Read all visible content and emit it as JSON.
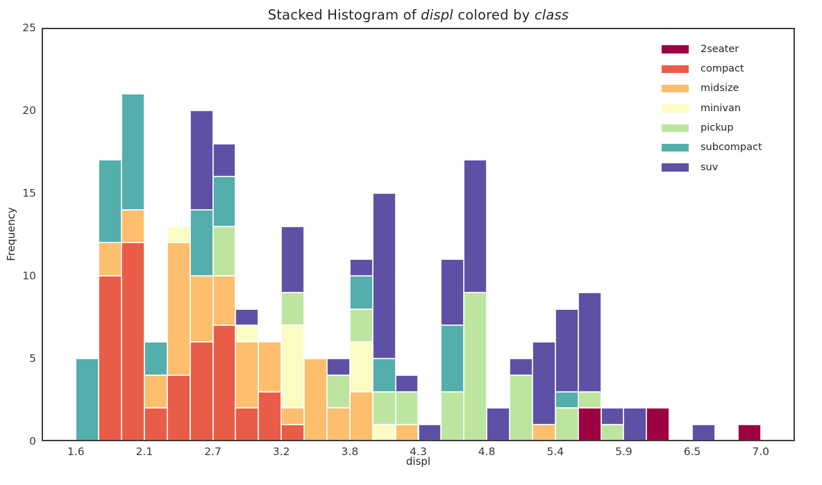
{
  "chart_data": {
    "type": "bar",
    "subtype": "stacked-histogram",
    "title_plain": "Stacked Histogram of displ colored by class",
    "title_parts": [
      {
        "text": "Stacked Histogram of ",
        "italic": false
      },
      {
        "text": "displ",
        "italic": true
      },
      {
        "text": " colored by ",
        "italic": false
      },
      {
        "text": "class",
        "italic": true
      }
    ],
    "xlabel": "displ",
    "ylabel": "Frequency",
    "xlim": [
      1.33,
      7.27
    ],
    "ylim": [
      0,
      25
    ],
    "grid": false,
    "legend_position": "upper-right-inside",
    "bin_width": 0.18,
    "y_ticks": [
      {
        "value": 0,
        "label": "0"
      },
      {
        "value": 5,
        "label": "5"
      },
      {
        "value": 10,
        "label": "10"
      },
      {
        "value": 15,
        "label": "15"
      },
      {
        "value": 20,
        "label": "20"
      },
      {
        "value": 25,
        "label": "25"
      }
    ],
    "x_ticks": [
      {
        "value": 1.6,
        "label": "1.6"
      },
      {
        "value": 2.14,
        "label": "2.1"
      },
      {
        "value": 2.68,
        "label": "2.7"
      },
      {
        "value": 3.22,
        "label": "3.2"
      },
      {
        "value": 3.76,
        "label": "3.8"
      },
      {
        "value": 4.3,
        "label": "4.3"
      },
      {
        "value": 4.84,
        "label": "4.8"
      },
      {
        "value": 5.38,
        "label": "5.4"
      },
      {
        "value": 5.92,
        "label": "5.9"
      },
      {
        "value": 6.46,
        "label": "6.5"
      },
      {
        "value": 7.0,
        "label": "7.0"
      }
    ],
    "classes": [
      {
        "name": "2seater",
        "color": "#9e0142"
      },
      {
        "name": "compact",
        "color": "#e95c47"
      },
      {
        "name": "midsize",
        "color": "#fdbe6e"
      },
      {
        "name": "minivan",
        "color": "#fbfcc4"
      },
      {
        "name": "pickup",
        "color": "#bee5a0"
      },
      {
        "name": "subcompact",
        "color": "#54aeab"
      },
      {
        "name": "suv",
        "color": "#5e51a5"
      }
    ],
    "bins": [
      {
        "range": [
          1.6,
          1.78
        ],
        "counts": {
          "subcompact": 5
        }
      },
      {
        "range": [
          1.78,
          1.96
        ],
        "counts": {
          "compact": 10,
          "midsize": 2,
          "subcompact": 5
        }
      },
      {
        "range": [
          1.96,
          2.14
        ],
        "counts": {
          "compact": 12,
          "midsize": 2,
          "subcompact": 7
        }
      },
      {
        "range": [
          2.14,
          2.32
        ],
        "counts": {
          "compact": 2,
          "midsize": 2,
          "subcompact": 2
        }
      },
      {
        "range": [
          2.32,
          2.5
        ],
        "counts": {
          "compact": 4,
          "midsize": 8,
          "minivan": 1
        }
      },
      {
        "range": [
          2.5,
          2.68
        ],
        "counts": {
          "compact": 6,
          "midsize": 4,
          "subcompact": 4,
          "suv": 6
        }
      },
      {
        "range": [
          2.68,
          2.86
        ],
        "counts": {
          "compact": 7,
          "midsize": 3,
          "pickup": 3,
          "subcompact": 3,
          "suv": 2
        }
      },
      {
        "range": [
          2.86,
          3.04
        ],
        "counts": {
          "compact": 2,
          "midsize": 4,
          "minivan": 1,
          "suv": 1
        }
      },
      {
        "range": [
          3.04,
          3.22
        ],
        "counts": {
          "compact": 3,
          "midsize": 3
        }
      },
      {
        "range": [
          3.22,
          3.4
        ],
        "counts": {
          "compact": 1,
          "midsize": 1,
          "minivan": 5,
          "pickup": 2,
          "suv": 4
        }
      },
      {
        "range": [
          3.4,
          3.58
        ],
        "counts": {
          "midsize": 5
        }
      },
      {
        "range": [
          3.58,
          3.76
        ],
        "counts": {
          "midsize": 2,
          "pickup": 2,
          "suv": 1
        }
      },
      {
        "range": [
          3.76,
          3.94
        ],
        "counts": {
          "midsize": 3,
          "minivan": 3,
          "pickup": 2,
          "subcompact": 2,
          "suv": 1
        }
      },
      {
        "range": [
          3.94,
          4.12
        ],
        "counts": {
          "minivan": 1,
          "pickup": 2,
          "subcompact": 2,
          "suv": 10
        }
      },
      {
        "range": [
          4.12,
          4.3
        ],
        "counts": {
          "midsize": 1,
          "pickup": 2,
          "suv": 1
        }
      },
      {
        "range": [
          4.3,
          4.48
        ],
        "counts": {
          "suv": 1
        }
      },
      {
        "range": [
          4.48,
          4.66
        ],
        "counts": {
          "pickup": 3,
          "subcompact": 4,
          "suv": 4
        }
      },
      {
        "range": [
          4.66,
          4.84
        ],
        "counts": {
          "pickup": 9,
          "suv": 8
        }
      },
      {
        "range": [
          4.84,
          5.02
        ],
        "counts": {
          "suv": 2
        }
      },
      {
        "range": [
          5.02,
          5.2
        ],
        "counts": {
          "pickup": 4,
          "suv": 1
        }
      },
      {
        "range": [
          5.2,
          5.38
        ],
        "counts": {
          "midsize": 1,
          "suv": 5
        }
      },
      {
        "range": [
          5.38,
          5.56
        ],
        "counts": {
          "pickup": 2,
          "subcompact": 1,
          "suv": 5
        }
      },
      {
        "range": [
          5.56,
          5.74
        ],
        "counts": {
          "2seater": 2,
          "pickup": 1,
          "suv": 6
        }
      },
      {
        "range": [
          5.74,
          5.92
        ],
        "counts": {
          "pickup": 1,
          "suv": 1
        }
      },
      {
        "range": [
          5.92,
          6.1
        ],
        "counts": {
          "suv": 2
        }
      },
      {
        "range": [
          6.1,
          6.28
        ],
        "counts": {
          "2seater": 2
        }
      },
      {
        "range": [
          6.28,
          6.46
        ],
        "counts": {}
      },
      {
        "range": [
          6.46,
          6.64
        ],
        "counts": {
          "suv": 1
        }
      },
      {
        "range": [
          6.64,
          6.82
        ],
        "counts": {}
      },
      {
        "range": [
          6.82,
          7.0
        ],
        "counts": {
          "2seater": 1
        }
      }
    ]
  }
}
